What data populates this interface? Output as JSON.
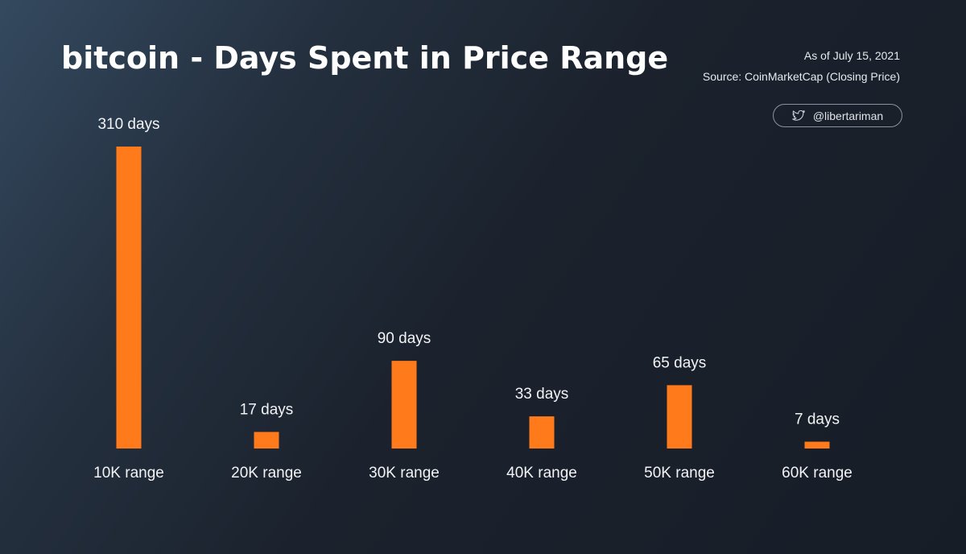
{
  "header": {
    "title": "bitcoin - Days Spent in Price Range",
    "as_of": "As of July 15, 2021",
    "source": "Source: CoinMarketCap (Closing Price)",
    "handle": "@libertariman",
    "handle_icon": "twitter-bird-icon"
  },
  "colors": {
    "bar": "#ff7a1a",
    "text": "#ffffff"
  },
  "chart_data": {
    "type": "bar",
    "title": "bitcoin - Days Spent in Price Range",
    "categories": [
      "10K range",
      "20K range",
      "30K range",
      "40K range",
      "50K range",
      "60K range"
    ],
    "values": [
      310,
      17,
      90,
      33,
      65,
      7
    ],
    "data_labels": [
      "310 days",
      "17 days",
      "90 days",
      "33 days",
      "65 days",
      "7 days"
    ],
    "xlabel": "",
    "ylabel": "",
    "ylim": [
      0,
      310
    ],
    "grid": false,
    "legend": "none"
  }
}
